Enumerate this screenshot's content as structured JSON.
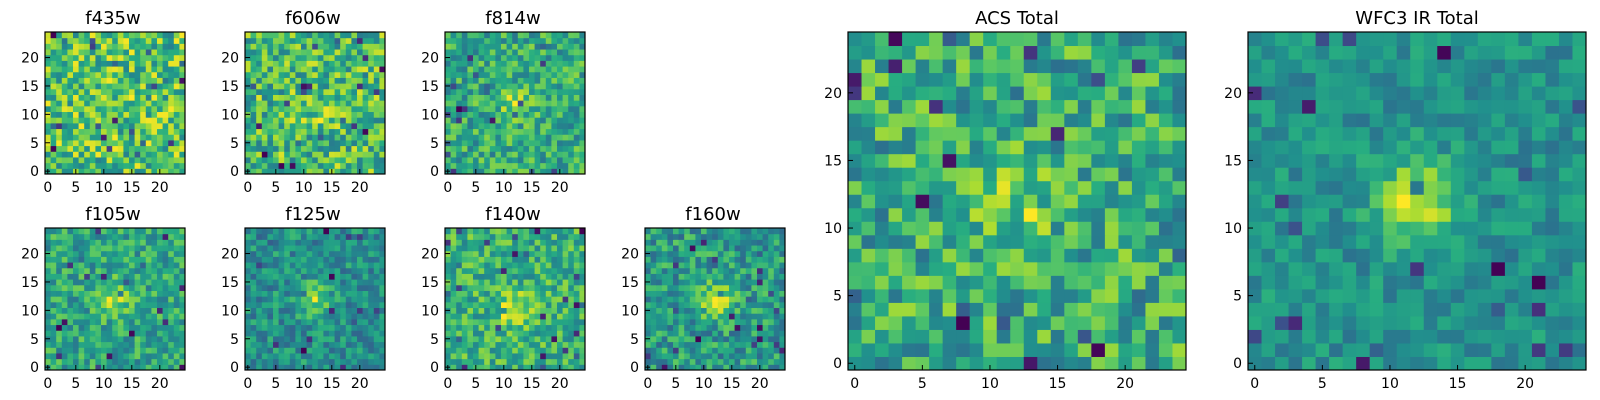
{
  "chart_data": [
    {
      "type": "heatmap",
      "title": "f435w",
      "xlim": [
        0,
        24
      ],
      "ylim": [
        0,
        24
      ],
      "xticks": [
        0,
        5,
        10,
        15,
        20
      ],
      "yticks": [
        0,
        5,
        10,
        15,
        20
      ],
      "colormap": "viridis",
      "peak": [
        12,
        11
      ],
      "peak_strength": 0.05,
      "noise": 0.75,
      "seed": 11
    },
    {
      "type": "heatmap",
      "title": "f606w",
      "xlim": [
        0,
        24
      ],
      "ylim": [
        0,
        24
      ],
      "xticks": [
        0,
        5,
        10,
        15,
        20
      ],
      "yticks": [
        0,
        5,
        10,
        15,
        20
      ],
      "colormap": "viridis",
      "peak": [
        12,
        11
      ],
      "peak_strength": 0.15,
      "noise": 0.7,
      "seed": 23
    },
    {
      "type": "heatmap",
      "title": "f814w",
      "xlim": [
        0,
        24
      ],
      "ylim": [
        0,
        24
      ],
      "xticks": [
        0,
        5,
        10,
        15,
        20
      ],
      "yticks": [
        0,
        5,
        10,
        15,
        20
      ],
      "colormap": "viridis",
      "peak": [
        12,
        12
      ],
      "peak_strength": 0.35,
      "noise": 0.65,
      "seed": 37
    },
    {
      "type": "heatmap",
      "title": "f105w",
      "xlim": [
        0,
        24
      ],
      "ylim": [
        0,
        24
      ],
      "xticks": [
        0,
        5,
        10,
        15,
        20
      ],
      "yticks": [
        0,
        5,
        10,
        15,
        20
      ],
      "colormap": "viridis",
      "peak": [
        12,
        12
      ],
      "peak_strength": 0.4,
      "noise": 0.55,
      "seed": 41
    },
    {
      "type": "heatmap",
      "title": "f125w",
      "xlim": [
        0,
        24
      ],
      "ylim": [
        0,
        24
      ],
      "xticks": [
        0,
        5,
        10,
        15,
        20
      ],
      "yticks": [
        0,
        5,
        10,
        15,
        20
      ],
      "colormap": "viridis",
      "peak": [
        12,
        12
      ],
      "peak_strength": 0.5,
      "noise": 0.55,
      "seed": 53
    },
    {
      "type": "heatmap",
      "title": "f140w",
      "xlim": [
        0,
        24
      ],
      "ylim": [
        0,
        24
      ],
      "xticks": [
        0,
        5,
        10,
        15,
        20
      ],
      "yticks": [
        0,
        5,
        10,
        15,
        20
      ],
      "colormap": "viridis",
      "peak": [
        12,
        10
      ],
      "peak_strength": 0.45,
      "noise": 0.55,
      "seed": 67
    },
    {
      "type": "heatmap",
      "title": "f160w",
      "xlim": [
        0,
        24
      ],
      "ylim": [
        0,
        24
      ],
      "xticks": [
        0,
        5,
        10,
        15,
        20
      ],
      "yticks": [
        0,
        5,
        10,
        15,
        20
      ],
      "colormap": "viridis",
      "peak": [
        12,
        12
      ],
      "peak_strength": 0.5,
      "noise": 0.55,
      "seed": 79
    },
    {
      "type": "heatmap",
      "title": "ACS Total",
      "xlim": [
        0,
        24
      ],
      "ylim": [
        0,
        24
      ],
      "xticks": [
        0,
        5,
        10,
        15,
        20
      ],
      "yticks": [
        0,
        5,
        10,
        15,
        20
      ],
      "colormap": "viridis",
      "peak": [
        12,
        12
      ],
      "peak_strength": 0.25,
      "noise": 0.6,
      "seed": 97
    },
    {
      "type": "heatmap",
      "title": "WFC3 IR Total",
      "xlim": [
        0,
        24
      ],
      "ylim": [
        0,
        24
      ],
      "xticks": [
        0,
        5,
        10,
        15,
        20
      ],
      "yticks": [
        0,
        5,
        10,
        15,
        20
      ],
      "colormap": "viridis",
      "peak": [
        12,
        12
      ],
      "peak_strength": 0.7,
      "noise": 0.4,
      "seed": 113
    }
  ]
}
